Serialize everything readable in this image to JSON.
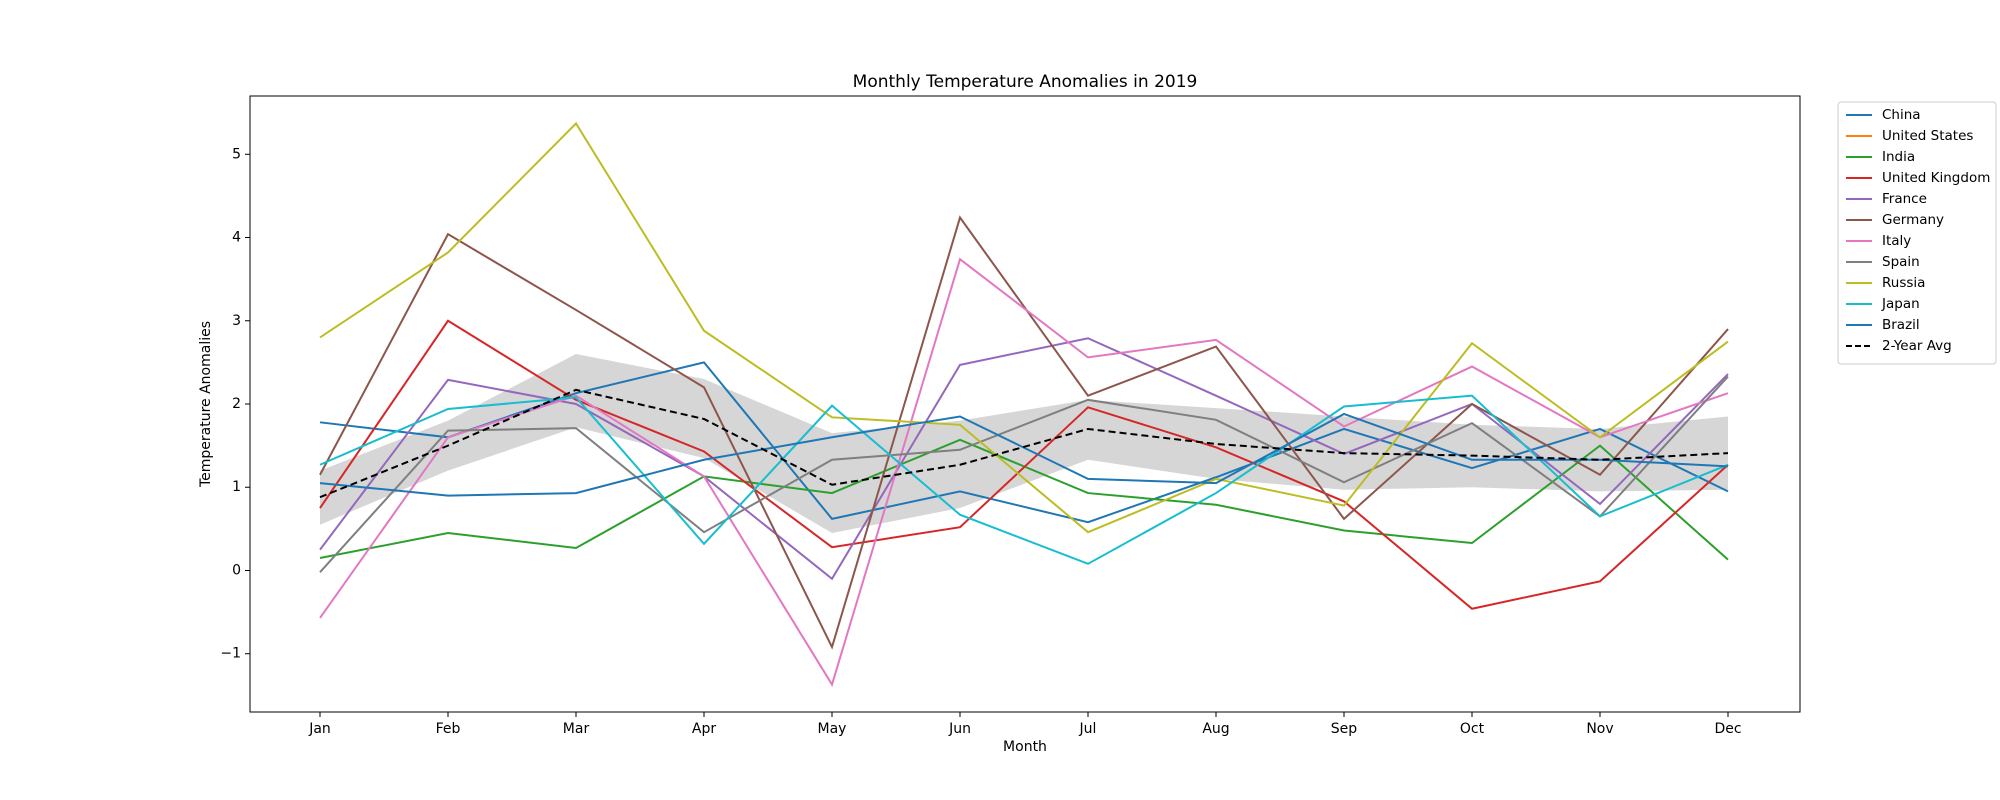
{
  "chart_data": {
    "type": "line",
    "title": "Monthly Temperature Anomalies in 2019",
    "xlabel": "Month",
    "ylabel": "Temperature Anomalies",
    "categories": [
      "Jan",
      "Feb",
      "Mar",
      "Apr",
      "May",
      "Jun",
      "Jul",
      "Aug",
      "Sep",
      "Oct",
      "Nov",
      "Dec"
    ],
    "ylim": [
      -1.7,
      5.7
    ],
    "yticks": [
      {
        "value": -1,
        "label": "−1"
      },
      0,
      1,
      2,
      3,
      4,
      5
    ],
    "legend": "outside-upper-right",
    "band": {
      "color": "#bbbbbb",
      "upper": [
        1.2,
        1.8,
        2.6,
        2.3,
        1.65,
        1.8,
        2.05,
        1.95,
        1.85,
        1.75,
        1.7,
        1.85
      ],
      "lower": [
        0.55,
        1.2,
        1.72,
        1.35,
        0.45,
        0.75,
        1.33,
        1.1,
        0.97,
        1.0,
        0.95,
        0.97
      ]
    },
    "series": [
      {
        "name": "China",
        "color": "#1f77b4",
        "values": [
          1.78,
          1.6,
          2.13,
          2.5,
          0.62,
          0.95,
          0.58,
          1.12,
          1.7,
          1.23,
          1.7,
          0.95
        ]
      },
      {
        "name": "United States",
        "color": "#ff7f0e",
        "values": [
          null,
          null,
          null,
          null,
          null,
          null,
          null,
          null,
          null,
          null,
          null,
          null
        ]
      },
      {
        "name": "India",
        "color": "#2ca02c",
        "values": [
          0.15,
          0.45,
          0.27,
          1.13,
          0.93,
          1.57,
          0.93,
          0.79,
          0.48,
          0.33,
          1.5,
          0.13
        ]
      },
      {
        "name": "United Kingdom",
        "color": "#d62728",
        "values": [
          0.75,
          3.0,
          2.05,
          1.43,
          0.28,
          0.52,
          1.96,
          1.48,
          0.83,
          -0.46,
          -0.13,
          1.27
        ]
      },
      {
        "name": "France",
        "color": "#9467bd",
        "values": [
          0.25,
          2.29,
          2.0,
          1.13,
          -0.1,
          2.47,
          2.79,
          2.1,
          1.4,
          2.0,
          0.8,
          2.36
        ]
      },
      {
        "name": "Germany",
        "color": "#8c564b",
        "values": [
          1.15,
          4.04,
          3.13,
          2.2,
          -0.92,
          4.24,
          2.1,
          2.69,
          0.62,
          2.0,
          1.15,
          2.9
        ]
      },
      {
        "name": "Italy",
        "color": "#e377c2",
        "values": [
          -0.57,
          1.6,
          2.1,
          1.13,
          -1.37,
          3.74,
          2.56,
          2.77,
          1.73,
          2.45,
          1.6,
          2.13
        ]
      },
      {
        "name": "Spain",
        "color": "#7f7f7f",
        "values": [
          -0.02,
          1.68,
          1.71,
          0.46,
          1.33,
          1.45,
          2.05,
          1.81,
          1.06,
          1.77,
          0.65,
          2.33
        ]
      },
      {
        "name": "Russia",
        "color": "#bcbd22",
        "values": [
          2.8,
          3.82,
          5.37,
          2.88,
          1.84,
          1.75,
          0.46,
          1.1,
          0.78,
          2.73,
          1.6,
          2.75
        ]
      },
      {
        "name": "Japan",
        "color": "#17becf",
        "values": [
          1.27,
          1.94,
          2.08,
          0.32,
          1.98,
          0.67,
          0.08,
          0.93,
          1.97,
          2.1,
          0.65,
          1.27
        ]
      },
      {
        "name": "Brazil",
        "color": "#1f77b4",
        "values": [
          1.05,
          0.9,
          0.93,
          1.33,
          1.6,
          1.85,
          1.1,
          1.05,
          1.88,
          1.33,
          1.33,
          1.25
        ]
      },
      {
        "name": "2-Year Avg",
        "color": "#000000",
        "dashed": true,
        "values": [
          0.88,
          1.5,
          2.17,
          1.82,
          1.03,
          1.27,
          1.7,
          1.52,
          1.41,
          1.38,
          1.33,
          1.41
        ]
      }
    ]
  }
}
